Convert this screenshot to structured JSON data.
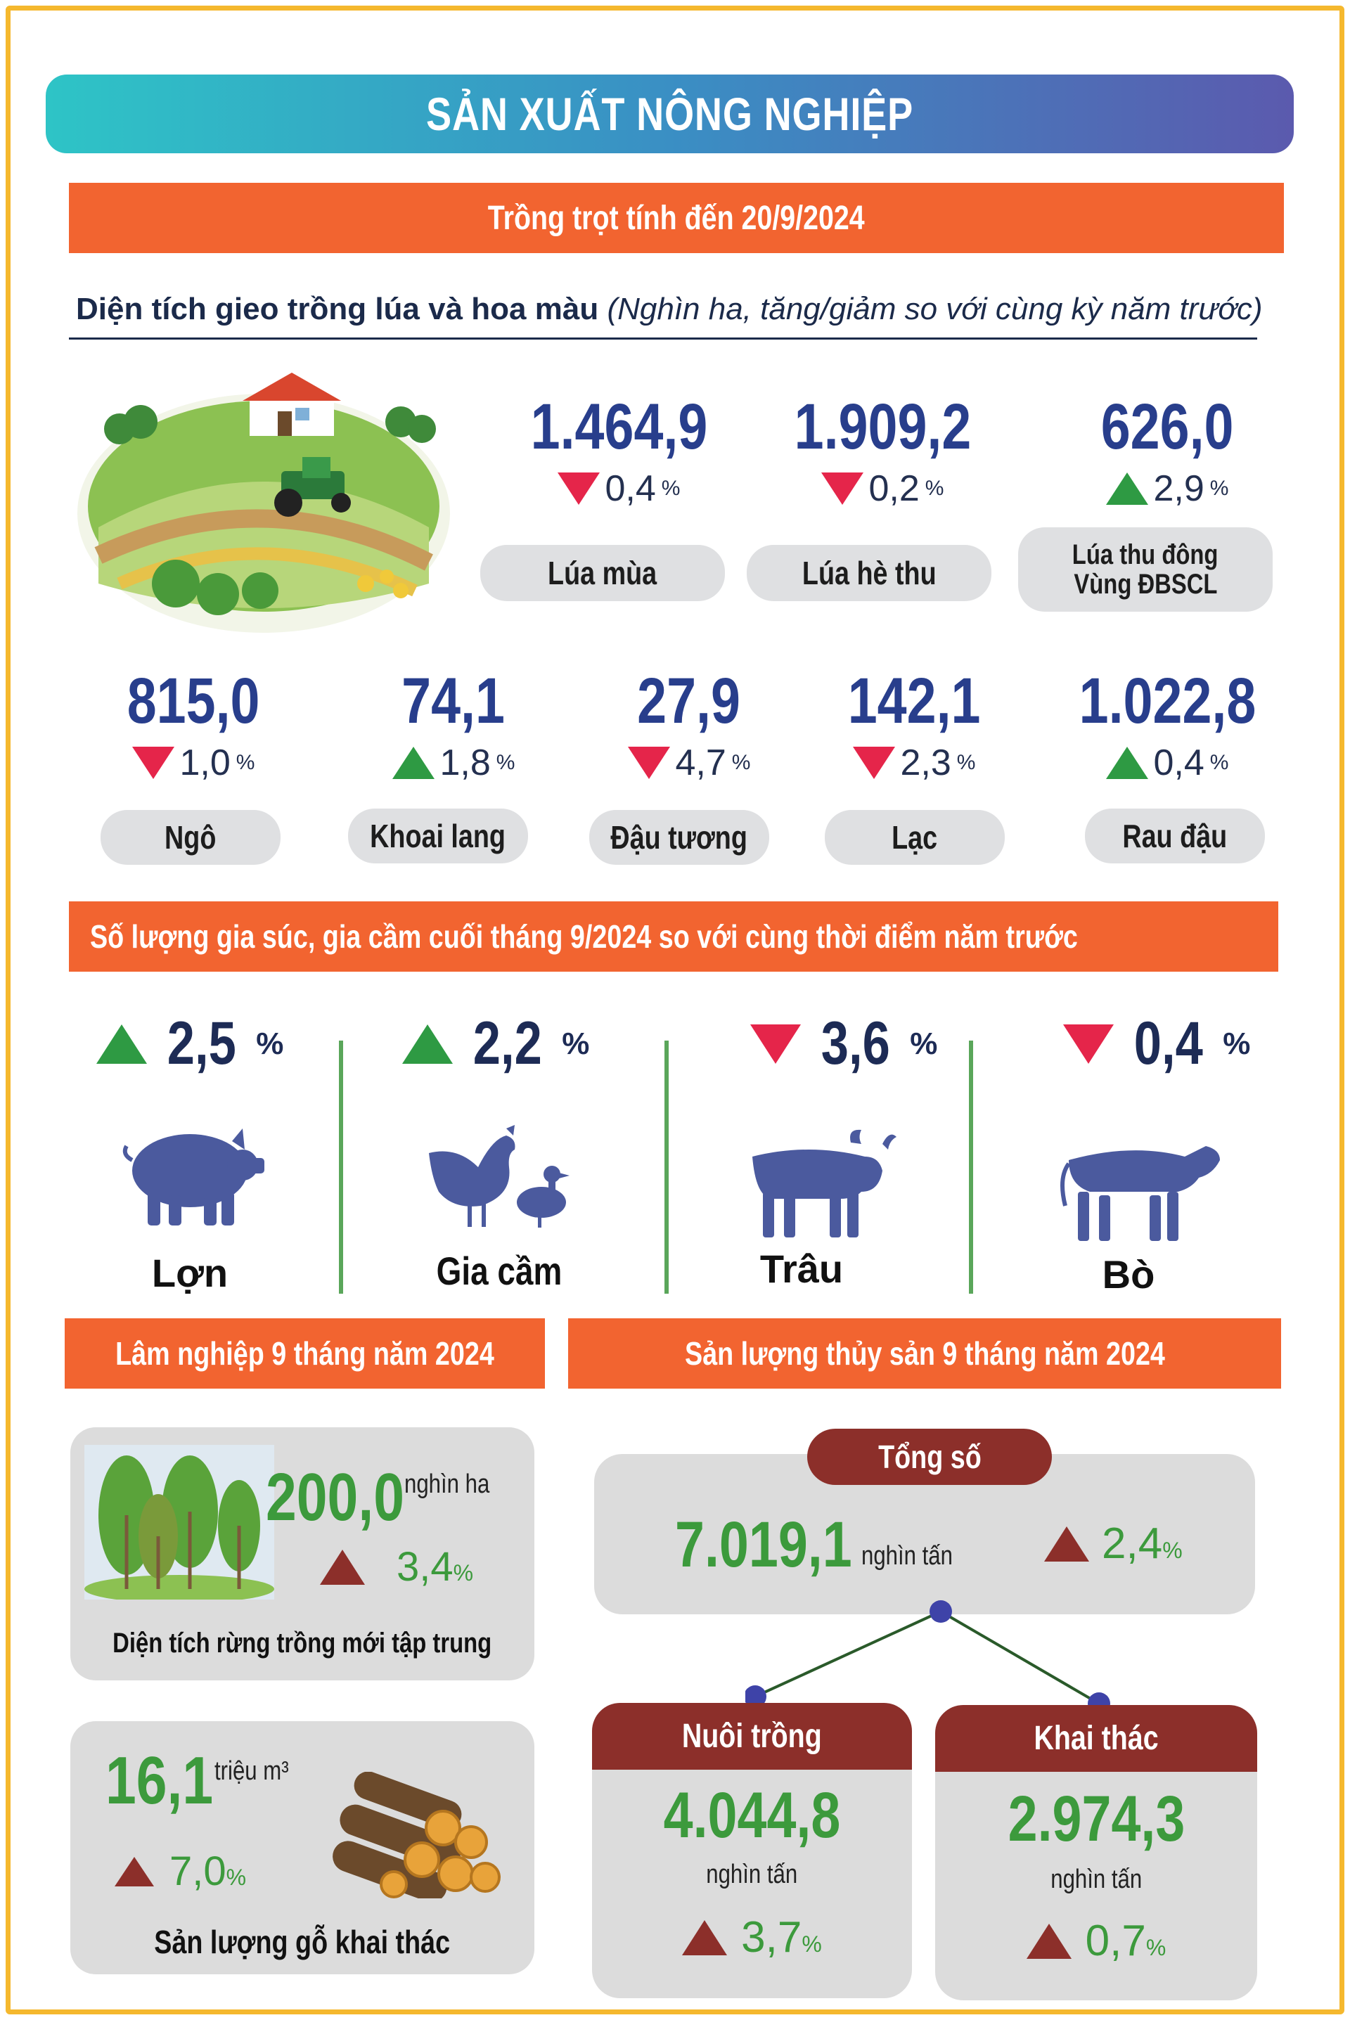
{
  "title": "SẢN XUẤT NÔNG NGHIỆP",
  "crop_section": {
    "header": "Trồng trọt tính đến 20/9/2024",
    "subtitle": "Diện tích gieo trồng lúa và hoa màu",
    "subtitle_note": "(Nghìn ha, tăng/giảm so với cùng kỳ năm trước)",
    "rice": [
      {
        "value": "1.464,9",
        "change": "0,4",
        "unit": "%",
        "direction": "down",
        "label": "Lúa mùa"
      },
      {
        "value": "1.909,2",
        "change": "0,2",
        "unit": "%",
        "direction": "down",
        "label": "Lúa hè thu"
      },
      {
        "value": "626,0",
        "change": "2,9",
        "unit": "%",
        "direction": "up",
        "label_line1": "Lúa thu đông",
        "label_line2": "Vùng ĐBSCL"
      }
    ],
    "other_crops": [
      {
        "value": "815,0",
        "change": "1,0",
        "unit": "%",
        "direction": "down",
        "label": "Ngô"
      },
      {
        "value": "74,1",
        "change": "1,8",
        "unit": "%",
        "direction": "up",
        "label": "Khoai lang"
      },
      {
        "value": "27,9",
        "change": "4,7",
        "unit": "%",
        "direction": "down",
        "label": "Đậu tương"
      },
      {
        "value": "142,1",
        "change": "2,3",
        "unit": "%",
        "direction": "down",
        "label": "Lạc"
      },
      {
        "value": "1.022,8",
        "change": "0,4",
        "unit": "%",
        "direction": "up",
        "label": "Rau đậu"
      }
    ]
  },
  "livestock_section": {
    "header": "Số lượng gia súc, gia cầm cuối tháng 9/2024 so với cùng thời điểm năm trước",
    "items": [
      {
        "change": "2,5",
        "unit": "%",
        "direction": "up",
        "label": "Lợn",
        "icon": "pig-icon"
      },
      {
        "change": "2,2",
        "unit": "%",
        "direction": "up",
        "label": "Gia cầm",
        "icon": "poultry-icon"
      },
      {
        "change": "3,6",
        "unit": "%",
        "direction": "down",
        "label": "Trâu",
        "icon": "buffalo-icon"
      },
      {
        "change": "0,4",
        "unit": "%",
        "direction": "down",
        "label": "Bò",
        "icon": "cow-icon"
      }
    ]
  },
  "forestry_section": {
    "header": "Lâm nghiệp 9 tháng năm 2024",
    "forest": {
      "value": "200,0",
      "unit": "nghìn ha",
      "change": "3,4",
      "pct": "%",
      "direction": "up",
      "label": "Diện tích rừng trồng mới tập trung"
    },
    "timber": {
      "value": "16,1",
      "unit": "triệu m³",
      "change": "7,0",
      "pct": "%",
      "direction": "up",
      "label": "Sản lượng gỗ khai thác"
    }
  },
  "fishery_section": {
    "header": "Sản lượng thủy sản 9 tháng năm 2024",
    "total": {
      "label": "Tổng số",
      "value": "7.019,1",
      "unit": "nghìn tấn",
      "change": "2,4",
      "pct": "%",
      "direction": "up"
    },
    "aquaculture": {
      "label": "Nuôi trồng",
      "value": "4.044,8",
      "unit": "nghìn tấn",
      "change": "3,7",
      "pct": "%",
      "direction": "up"
    },
    "capture": {
      "label": "Khai thác",
      "value": "2.974,3",
      "unit": "nghìn tấn",
      "change": "0,7",
      "pct": "%",
      "direction": "up"
    }
  },
  "colors": {
    "orange": "#f26430",
    "navy": "#283e8c",
    "green": "#3c9a3c",
    "brown": "#8c2f2a",
    "up": "#2e9a43",
    "down": "#e5254a",
    "border": "#f5b82e"
  }
}
